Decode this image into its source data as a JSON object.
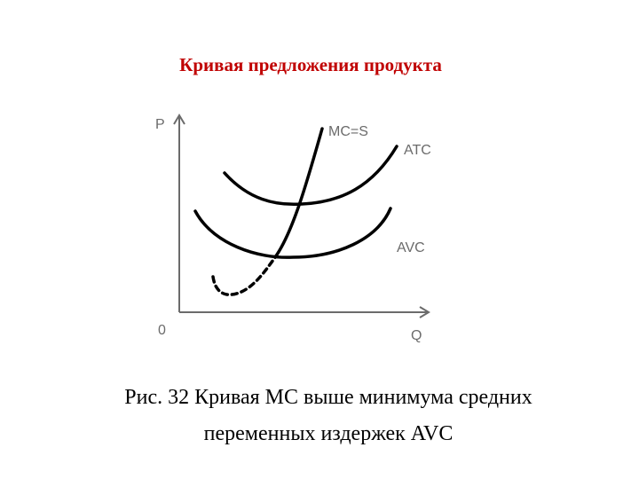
{
  "header": {
    "title": "Кривая предложения продукта"
  },
  "diagram": {
    "y_axis_label": "P",
    "x_axis_label": "Q",
    "origin_label": "0",
    "curves": [
      {
        "label": "MC=S"
      },
      {
        "label": "ATC"
      },
      {
        "label": "AVC"
      }
    ]
  },
  "caption": {
    "lines": [
      "Рис. 32 Кривая МС выше минимума средних",
      "переменных издержек AVC"
    ]
  }
}
